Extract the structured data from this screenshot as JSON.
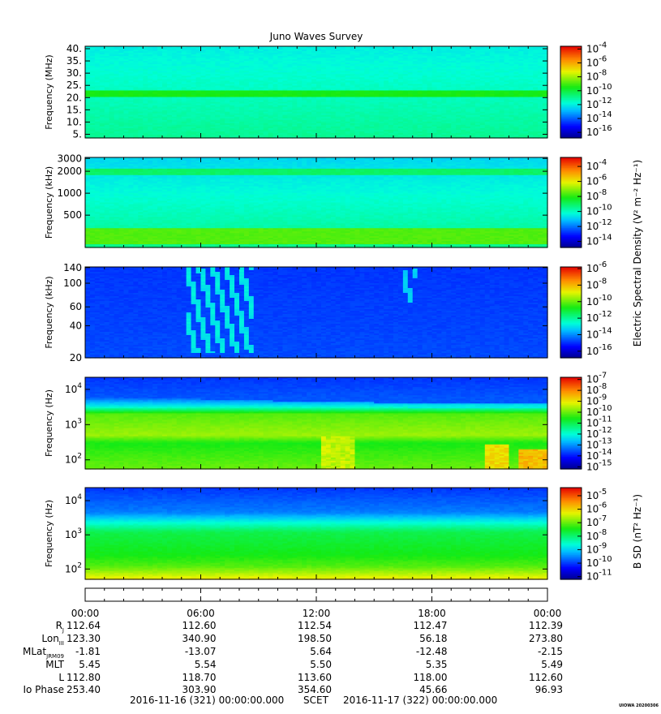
{
  "chart_data": {
    "type": "heatmap",
    "title": "Juno Waves Survey",
    "time_axis": {
      "tick_labels": [
        "00:00",
        "06:00",
        "12:00",
        "18:00",
        "00:00"
      ],
      "minor_ticks_per_major": 6
    },
    "panels": [
      {
        "id": "hfr_high",
        "ylabel": "Frequency (MHz)",
        "yscale": "linear",
        "ylim": [
          3.5,
          41
        ],
        "yticks": [
          {
            "v": 5,
            "l": "5."
          },
          {
            "v": 10,
            "l": "10."
          },
          {
            "v": 15,
            "l": "15."
          },
          {
            "v": 20,
            "l": "20."
          },
          {
            "v": 25,
            "l": "25."
          },
          {
            "v": 30,
            "l": "30."
          },
          {
            "v": 35,
            "l": "35."
          },
          {
            "v": 40,
            "l": "40."
          }
        ],
        "colorbar": {
          "exponents": [
            "-4",
            "-6",
            "-8",
            "-10",
            "-12",
            "-14",
            "-16"
          ],
          "range": [
            -16.8,
            -3.6
          ]
        },
        "base": {
          "top": 0.36,
          "bottom": 0.44
        },
        "bands": [
          {
            "lo": 20.5,
            "hi": 22.6,
            "value": 0.55
          }
        ]
      },
      {
        "id": "hfr_low",
        "ylabel": "Frequency (kHz)",
        "yscale": "log",
        "ylim": [
          180,
          3100
        ],
        "yticks": [
          {
            "v": 500,
            "l": "500"
          },
          {
            "v": 1000,
            "l": "1000"
          },
          {
            "v": 2000,
            "l": "2000"
          },
          {
            "v": 3000,
            "l": "3000"
          }
        ],
        "colorbar": {
          "exponents": [
            "-4",
            "-6",
            "-8",
            "-10",
            "-12",
            "-14"
          ],
          "range": [
            -14.8,
            -2.8
          ]
        },
        "base": {
          "top": 0.33,
          "bottom": 0.45
        },
        "bands": [
          {
            "lo": 1800,
            "hi": 2200,
            "value": 0.48
          },
          {
            "lo": 200,
            "hi": 330,
            "value": 0.6
          }
        ]
      },
      {
        "id": "lfr_high",
        "ylabel": "Frequency (kHz)",
        "yscale": "log",
        "ylim": [
          20,
          142
        ],
        "yticks": [
          {
            "v": 20,
            "l": "20"
          },
          {
            "v": 40,
            "l": "40"
          },
          {
            "v": 60,
            "l": "60"
          },
          {
            "v": 100,
            "l": "100"
          },
          {
            "v": 140,
            "l": "140"
          }
        ],
        "colorbar": {
          "exponents": [
            "-6",
            "-8",
            "-10",
            "-12",
            "-14",
            "-16"
          ],
          "range": [
            -16.8,
            -5.8
          ]
        },
        "base": {
          "top": 0.17,
          "bottom": 0.19
        },
        "emissions": [
          {
            "t0": 5.2,
            "t1": 8.8,
            "flo": 22,
            "fhi": 140,
            "value": 0.33
          },
          {
            "t0": 16.6,
            "t1": 17.3,
            "flo": 65,
            "fhi": 135,
            "value": 0.3
          }
        ]
      },
      {
        "id": "lfr_low",
        "ylabel": "Frequency (Hz)",
        "yscale": "log",
        "ylim": [
          55,
          22000
        ],
        "yticks": [
          {
            "v": 100,
            "e": "2"
          },
          {
            "v": 1000,
            "e": "3"
          },
          {
            "v": 10000,
            "e": "4"
          }
        ],
        "colorbar": {
          "exponents": [
            "-7",
            "-8",
            "-9",
            "-10",
            "-11",
            "-12",
            "-13",
            "-14",
            "-15"
          ],
          "range": [
            -15.2,
            -6.8
          ]
        },
        "profile": [
          {
            "f": 55,
            "v": 0.62
          },
          {
            "f": 300,
            "v": 0.55
          },
          {
            "f": 500,
            "v": 0.66
          },
          {
            "f": 2000,
            "v": 0.6
          },
          {
            "f": 3300,
            "v": 0.36
          },
          {
            "f": 6000,
            "v": 0.2
          },
          {
            "f": 22000,
            "v": 0.17
          }
        ],
        "cutoff_hz": {
          "start": 4500,
          "mid": 3200,
          "end": 2800
        },
        "hotspots": [
          {
            "t0": 12.3,
            "t1": 14.0,
            "fhi": 450,
            "value": 0.72
          },
          {
            "t0": 20.7,
            "t1": 22.0,
            "fhi": 260,
            "value": 0.78
          },
          {
            "t0": 22.6,
            "t1": 24.0,
            "fhi": 200,
            "value": 0.82
          }
        ]
      },
      {
        "id": "magnetic",
        "ylabel": "Frequency (Hz)",
        "yscale": "log",
        "ylim": [
          50,
          24000
        ],
        "yticks": [
          {
            "v": 100,
            "e": "2"
          },
          {
            "v": 1000,
            "e": "3"
          },
          {
            "v": 10000,
            "e": "4"
          }
        ],
        "colorbar": {
          "exponents": [
            "-5",
            "-6",
            "-7",
            "-8",
            "-9",
            "-10",
            "-11"
          ],
          "range": [
            -11.2,
            -4.4
          ]
        },
        "profile": [
          {
            "f": 50,
            "v": 0.74
          },
          {
            "f": 120,
            "v": 0.6
          },
          {
            "f": 250,
            "v": 0.55
          },
          {
            "f": 1200,
            "v": 0.5
          },
          {
            "f": 2500,
            "v": 0.36
          },
          {
            "f": 4500,
            "v": 0.24
          },
          {
            "f": 24000,
            "v": 0.17
          }
        ]
      }
    ],
    "colorbar_labels": {
      "electric": "Electric Spectral Density (V² m⁻² Hz⁻¹)",
      "magnetic": "B SD (nT² Hz⁻¹)"
    }
  },
  "ephemeris": {
    "rows": [
      {
        "label": "R",
        "sub": "J",
        "values": [
          "112.64",
          "112.60",
          "112.54",
          "112.47",
          "112.39"
        ]
      },
      {
        "label": "Lon",
        "sub": "III",
        "values": [
          "123.30",
          "340.90",
          "198.50",
          "56.18",
          "273.80"
        ]
      },
      {
        "label": "MLat",
        "sub": "JRM09",
        "values": [
          "-1.81",
          "-13.07",
          "5.64",
          "-12.48",
          "-2.15"
        ]
      },
      {
        "label": "MLT",
        "sub": "",
        "values": [
          "5.45",
          "5.54",
          "5.50",
          "5.35",
          "5.49"
        ]
      },
      {
        "label": "L",
        "sub": "",
        "values": [
          "112.80",
          "118.70",
          "113.60",
          "118.00",
          "112.60"
        ]
      },
      {
        "label": "Io Phase",
        "sub": "",
        "values": [
          "253.40",
          "303.90",
          "354.60",
          "45.66",
          "96.93"
        ]
      }
    ]
  },
  "footer": {
    "start": "2016-11-16 (321) 00:00:00.000",
    "frame": "SCET",
    "end": "2016-11-17 (322) 00:00:00.000"
  },
  "credit": "UIOWA 20200306"
}
